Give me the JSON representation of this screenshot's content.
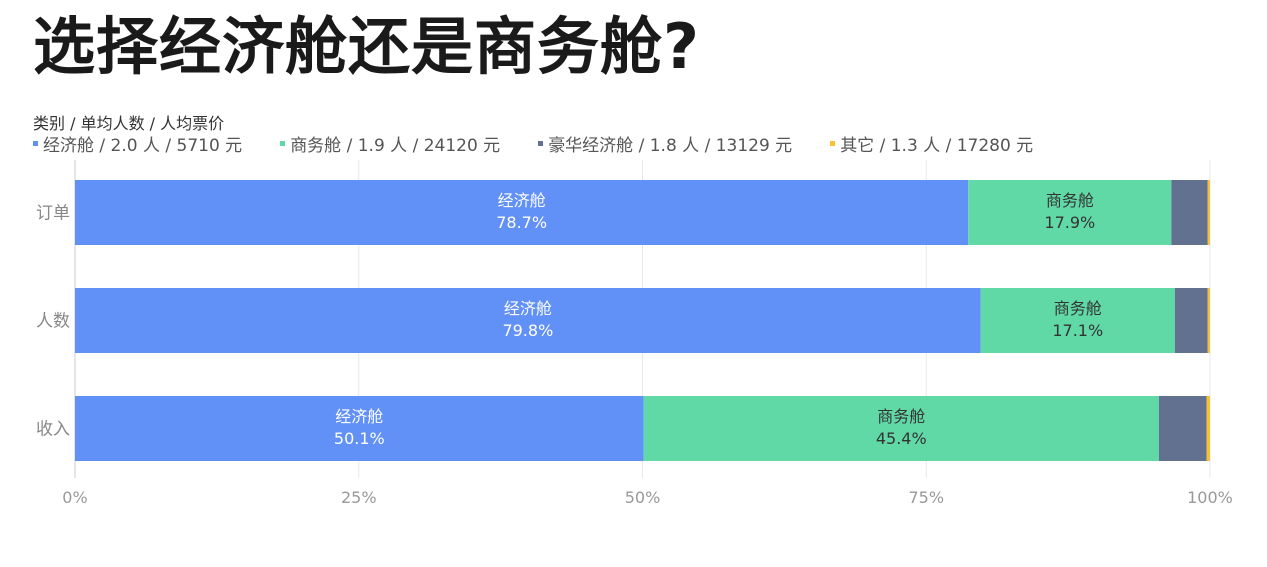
{
  "title": "选择经济舱还是商务舱?",
  "legend_header": "类别 / 单均人数 / 人均票价",
  "chart_data": {
    "type": "bar",
    "orientation": "horizontal",
    "stacked": "percent",
    "categories": [
      "订单",
      "人数",
      "收入"
    ],
    "series": [
      {
        "name": "经济舱",
        "legend": "经济舱 / 2.0 人 / 5710 元",
        "color": "#6190f6",
        "label_color": "#ffffff",
        "values": [
          78.7,
          79.8,
          50.1
        ],
        "show_labels": true
      },
      {
        "name": "商务舱",
        "legend": "商务舱 / 1.9 人 / 24120 元",
        "color": "#61d9a7",
        "label_color": "#333333",
        "values": [
          17.9,
          17.1,
          45.4
        ],
        "show_labels": true
      },
      {
        "name": "豪华经济舱",
        "legend": "豪华经济舱 / 1.8 人 / 13129 元",
        "color": "#627190",
        "label_color": "#ffffff",
        "values": [
          3.2,
          2.9,
          4.2
        ],
        "show_labels": false
      },
      {
        "name": "其它",
        "legend": "其它 / 1.3 人 / 17280 元",
        "color": "#f6c232",
        "label_color": "#333333",
        "values": [
          0.2,
          0.2,
          0.3
        ],
        "show_labels": false
      }
    ],
    "xticks": [
      "0%",
      "25%",
      "50%",
      "75%",
      "100%"
    ],
    "xlim": [
      0,
      100
    ],
    "grid": true,
    "legend_position": "top-left"
  }
}
